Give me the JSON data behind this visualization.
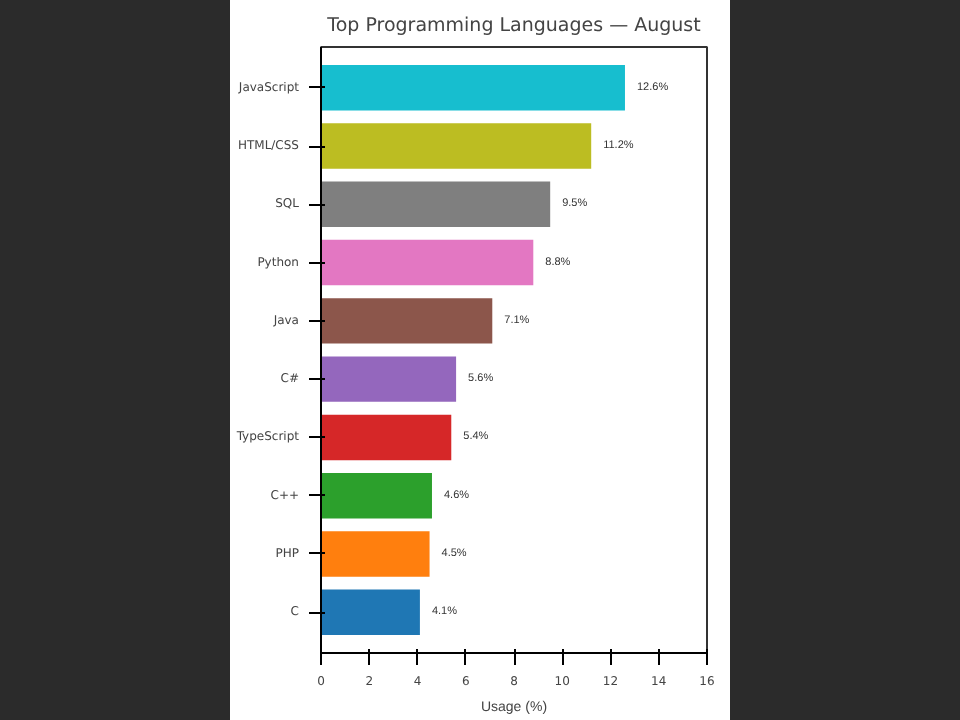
{
  "chart_data": {
    "type": "bar",
    "orientation": "horizontal",
    "title": "Top Programming Languages — August",
    "xlabel": "Usage (%)",
    "categories": [
      "JavaScript",
      "HTML/CSS",
      "SQL",
      "Python",
      "Java",
      "C#",
      "TypeScript",
      "C++",
      "PHP",
      "C"
    ],
    "values": [
      12.6,
      11.2,
      9.5,
      8.8,
      7.1,
      5.6,
      5.4,
      4.6,
      4.5,
      4.1
    ],
    "colors": [
      "#17becf",
      "#bcbd22",
      "#7f7f7f",
      "#e377c2",
      "#8c564b",
      "#9467bd",
      "#d62728",
      "#2ca02c",
      "#ff7f0e",
      "#1f77b4"
    ],
    "value_labels": [
      "12.6%",
      "11.2%",
      "9.5%",
      "8.8%",
      "7.1%",
      "5.6%",
      "5.4%",
      "4.6%",
      "4.5%",
      "4.1%"
    ],
    "xlim": [
      0,
      16
    ],
    "xticks": [
      0,
      2,
      4,
      6,
      8,
      10,
      12,
      14,
      16
    ],
    "grid": false
  }
}
